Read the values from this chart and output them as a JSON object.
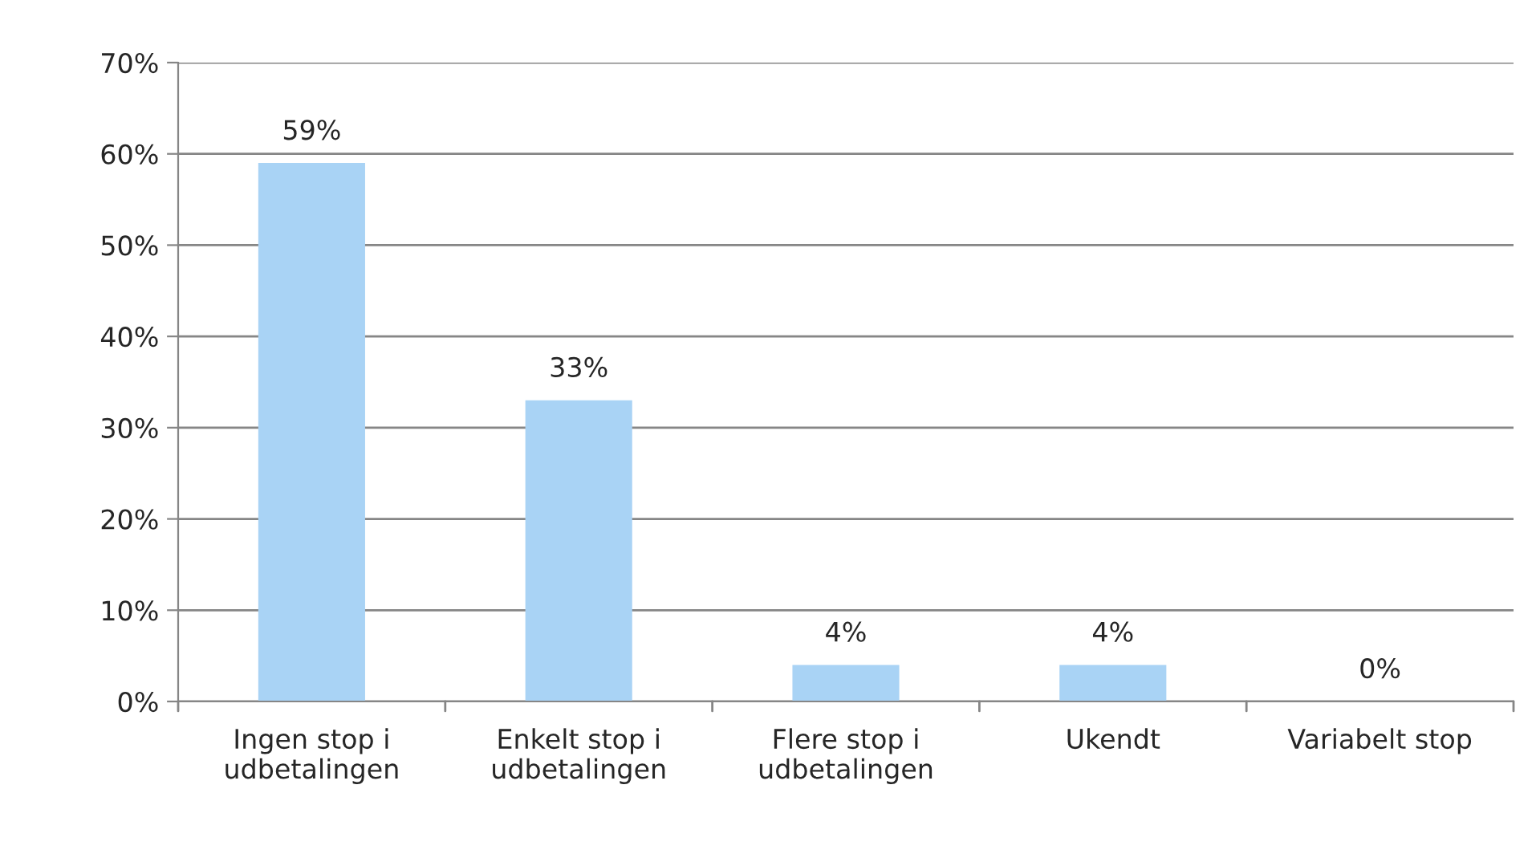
{
  "chart_data": {
    "type": "bar",
    "categories": [
      "Ingen stop i\nudbetalingen",
      "Enkelt stop i\nudbetalingen",
      "Flere stop i\nudbetalingen",
      "Ukendt",
      "Variabelt stop"
    ],
    "values": [
      59,
      33,
      4,
      4,
      0
    ],
    "value_labels": [
      "59%",
      "33%",
      "4%",
      "4%",
      "0%"
    ],
    "color": "#a9d3f5",
    "ylim": [
      0,
      70
    ],
    "yticks": [
      {
        "value": 0,
        "label": "0%"
      },
      {
        "value": 10,
        "label": "10%"
      },
      {
        "value": 20,
        "label": "20%"
      },
      {
        "value": 30,
        "label": "30%"
      },
      {
        "value": 40,
        "label": "40%"
      },
      {
        "value": 50,
        "label": "50%"
      },
      {
        "value": 60,
        "label": "60%"
      },
      {
        "value": 70,
        "label": "70%"
      }
    ],
    "grid": "y",
    "legend": false
  }
}
